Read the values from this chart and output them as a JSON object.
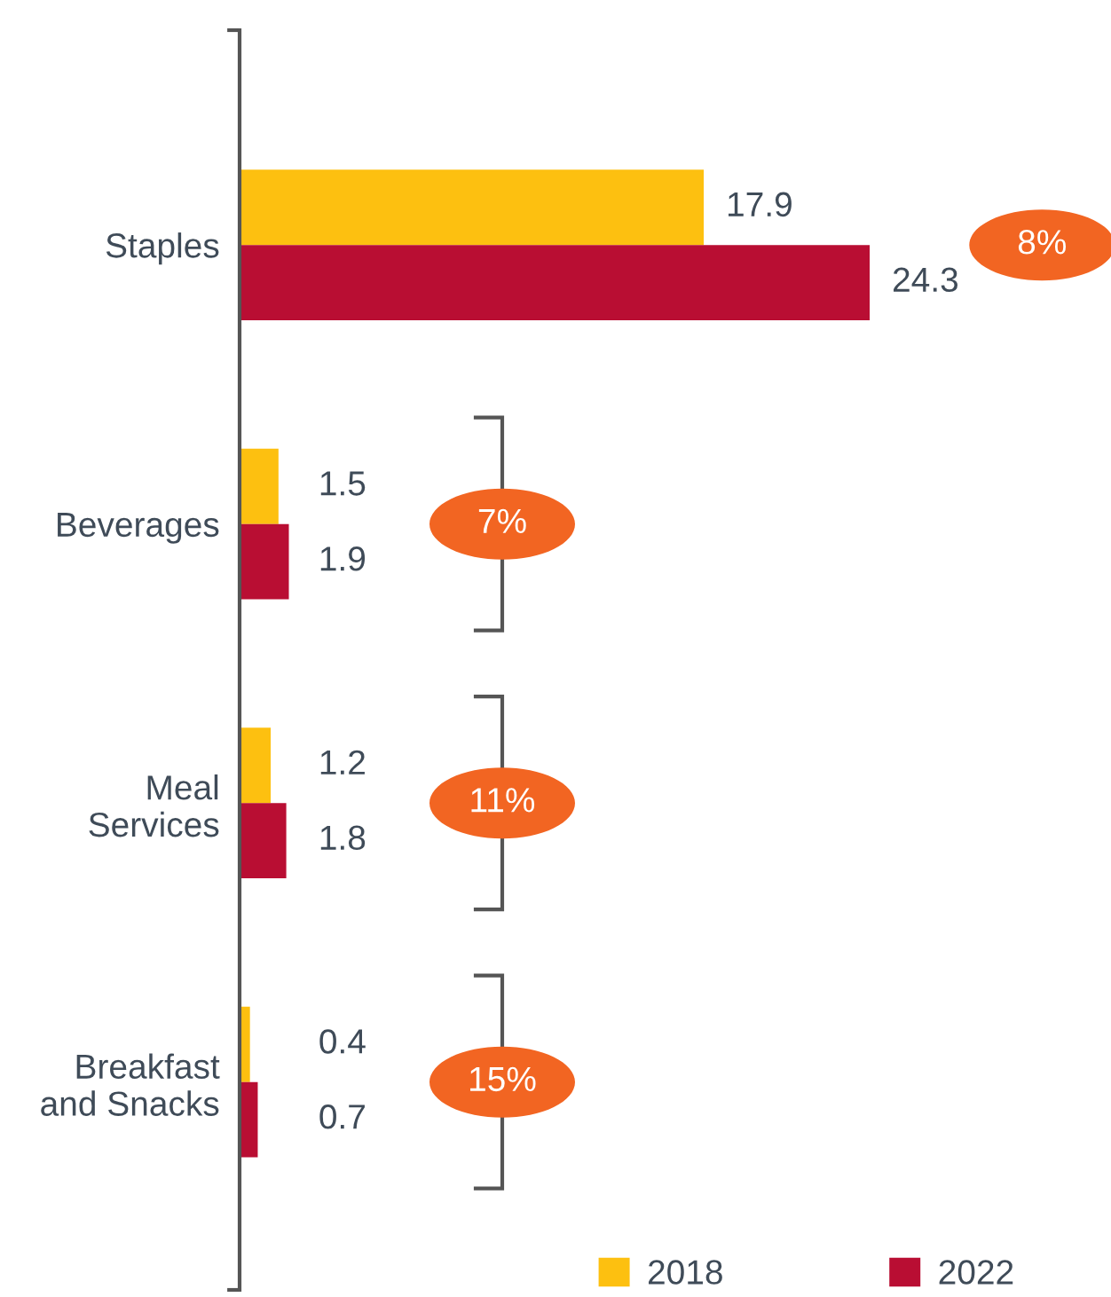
{
  "chart_data": {
    "type": "bar",
    "orientation": "horizontal",
    "categories": [
      "Staples",
      "Beverages",
      "Meal\nServices",
      "Breakfast\nand Snacks"
    ],
    "series": [
      {
        "name": "2018",
        "color": "#fdc010",
        "values": [
          17.9,
          1.5,
          1.2,
          0.4
        ]
      },
      {
        "name": "2022",
        "color": "#b90e33",
        "values": [
          24.3,
          1.9,
          1.8,
          0.7
        ]
      }
    ],
    "data_labels": true,
    "annotations": [
      "8%",
      "7%",
      "11%",
      "15%"
    ],
    "legend": "bottom right",
    "tick_labels": "y",
    "grid": false
  }
}
